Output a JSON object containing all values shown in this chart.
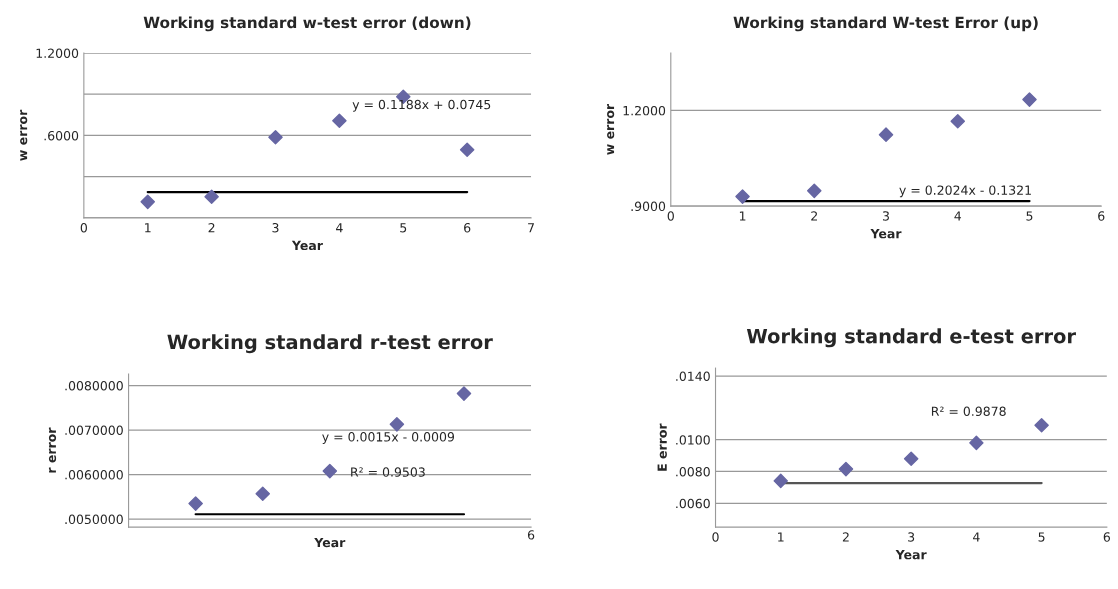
{
  "chart_data": [
    {
      "type": "scatter",
      "title": "Working standard w-test error (down)",
      "xlabel": "Year",
      "ylabel": "w error",
      "grid": "y",
      "xlim": [
        0,
        7
      ],
      "xticks": [
        0,
        1,
        2,
        3,
        4,
        5,
        6,
        7
      ],
      "ylim": [
        0,
        1.2
      ],
      "yticks": [
        {
          "value": 0,
          "label": null
        },
        {
          "value": 0.3,
          "label": null
        },
        {
          "value": 0.6,
          "label": ".6000"
        },
        {
          "value": 0.9,
          "label": null
        },
        {
          "value": 1.2,
          "label": "1.2000"
        }
      ],
      "annotations": [
        "y = 0.1188x + 0.0745"
      ],
      "series": [
        {
          "type": "scatter",
          "marker": "diamond",
          "color": "#6666a3",
          "x": [
            1,
            2,
            3,
            4,
            5,
            6
          ],
          "values": [
            0.117,
            0.154,
            0.587,
            0.707,
            0.882,
            0.496
          ]
        },
        {
          "type": "line",
          "color": "#000000",
          "x": [
            1,
            6
          ],
          "values": [
            0.188,
            0.188
          ]
        }
      ]
    },
    {
      "type": "scatter",
      "title": "Working standard W-test Error (up)",
      "xlabel": "Year",
      "ylabel": "w error",
      "grid": "y",
      "xlim": [
        0,
        6
      ],
      "xticks": [
        0,
        1,
        2,
        3,
        4,
        5,
        6
      ],
      "ylim": [
        0.9,
        1.38
      ],
      "yticks": [
        {
          "value": 0.9,
          "label": ".9000"
        },
        {
          "value": 1.2,
          "label": "1.2000"
        }
      ],
      "annotations": [
        "y = 0.2024x - 0.1321"
      ],
      "series": [
        {
          "type": "scatter",
          "marker": "diamond",
          "color": "#6666a3",
          "x": [
            1,
            2,
            3,
            4,
            5
          ],
          "values": [
            0.93,
            0.948,
            1.124,
            1.166,
            1.234
          ]
        },
        {
          "type": "line",
          "color": "#000000",
          "x": [
            1,
            5
          ],
          "values": [
            0.916,
            0.916
          ]
        }
      ]
    },
    {
      "type": "scatter",
      "title": "Working standard r-test error",
      "xlabel": "Year",
      "ylabel": "r error",
      "grid": "y",
      "categories": [
        null,
        null,
        null,
        null,
        null
      ],
      "ylim": [
        0.00482,
        0.00826
      ],
      "yticks": [
        {
          "value": 0.005,
          "label": ".0050000"
        },
        {
          "value": 0.006,
          "label": ".0060000"
        },
        {
          "value": 0.007,
          "label": ".0070000"
        },
        {
          "value": 0.008,
          "label": ".0080000"
        }
      ],
      "annotations": [
        "y = 0.0015x - 0.0009",
        "R² = 0.9503",
        "6"
      ],
      "series": [
        {
          "type": "scatter",
          "marker": "diamond",
          "color": "#6666a3",
          "values": [
            0.00535,
            0.00557,
            0.00608,
            0.00713,
            0.00782
          ]
        },
        {
          "type": "line",
          "color": "#000000",
          "values": [
            0.00511,
            0.00511,
            0.00511,
            0.00511,
            0.00511
          ]
        }
      ]
    },
    {
      "type": "scatter",
      "title": "Working standard e-test error",
      "xlabel": "Year",
      "ylabel": "E error",
      "grid": "y",
      "xlim": [
        0,
        6
      ],
      "xticks": [
        0,
        1,
        2,
        3,
        4,
        5,
        6
      ],
      "ylim": [
        0.0045,
        0.0145
      ],
      "yticks": [
        {
          "value": 0.006,
          "label": ".0060"
        },
        {
          "value": 0.008,
          "label": ".0080"
        },
        {
          "value": 0.01,
          "label": ".0100"
        },
        {
          "value": 0.014,
          "label": ".0140"
        }
      ],
      "annotations": [
        "R² = 0.9878"
      ],
      "series": [
        {
          "type": "scatter",
          "marker": "diamond",
          "color": "#6666a3",
          "x": [
            1,
            2,
            3,
            4,
            5
          ],
          "values": [
            0.00741,
            0.00815,
            0.0088,
            0.0098,
            0.01091
          ]
        },
        {
          "type": "line",
          "color": "#555555",
          "x": [
            1,
            5
          ],
          "values": [
            0.00727,
            0.00727
          ]
        }
      ]
    }
  ]
}
